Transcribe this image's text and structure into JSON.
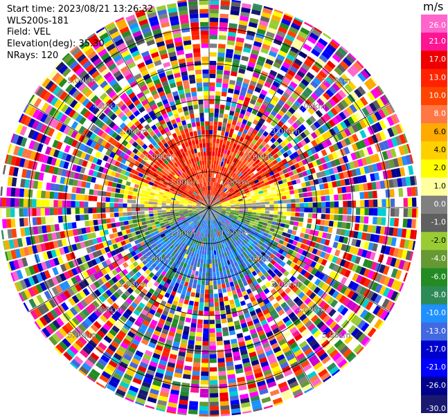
{
  "header": {
    "start_time": "Start time: 2023/08/21 13:26:32",
    "instrument": "WLS200s-181",
    "field": "Field: VEL",
    "elevation": "Elevation(deg): 35.30",
    "nrays": "NRays: 120"
  },
  "colorbar": {
    "unit": "m/s",
    "ticks": [
      "26.0",
      "21.0",
      "17.0",
      "13.0",
      "10.0",
      "8.0",
      "6.0",
      "4.0",
      "2.0",
      "1.0",
      "0.0",
      "-1.0",
      "-2.0",
      "-4.0",
      "-6.0",
      "-8.0",
      "-10.0",
      "-13.0",
      "-17.0",
      "-21.0",
      "-26.0",
      "-30.0"
    ],
    "colors": [
      "#ff66cc",
      "#ff1493",
      "#ee0000",
      "#ff2200",
      "#ff4400",
      "#ff7744",
      "#ffaa00",
      "#ffd000",
      "#ffff00",
      "#ffffa0",
      "#808080",
      "#606060",
      "#99cc33",
      "#669933",
      "#228b22",
      "#2e8b57",
      "#1e90ff",
      "#4169e1",
      "#0000cd",
      "#0000ff",
      "#00008b",
      "#191970"
    ]
  },
  "chart_data": {
    "type": "ppi",
    "field": "VEL",
    "units": "m/s",
    "nrays": 120,
    "elevation_deg": 35.3,
    "range_rings_km": [
      1.0,
      2.0,
      3.0,
      4.0,
      5.0
    ],
    "range_ring_labels": [
      "1.00km",
      "2.00km",
      "3.00km",
      "4.00km",
      "5.00km"
    ],
    "color_scale": [
      "26.0",
      "21.0",
      "17.0",
      "13.0",
      "10.0",
      "8.0",
      "6.0",
      "4.0",
      "2.0",
      "1.0",
      "0.0",
      "-1.0",
      "-2.0",
      "-4.0",
      "-6.0",
      "-8.0",
      "-10.0",
      "-13.0",
      "-17.0",
      "-21.0",
      "-26.0",
      "-30.0"
    ],
    "near_field_pattern": "positive velocities (orange/red) to the north, near-zero (grey/yellow) along east-west, negative velocities (green/blue) to the south; noisy random colors beyond about 2 km"
  }
}
